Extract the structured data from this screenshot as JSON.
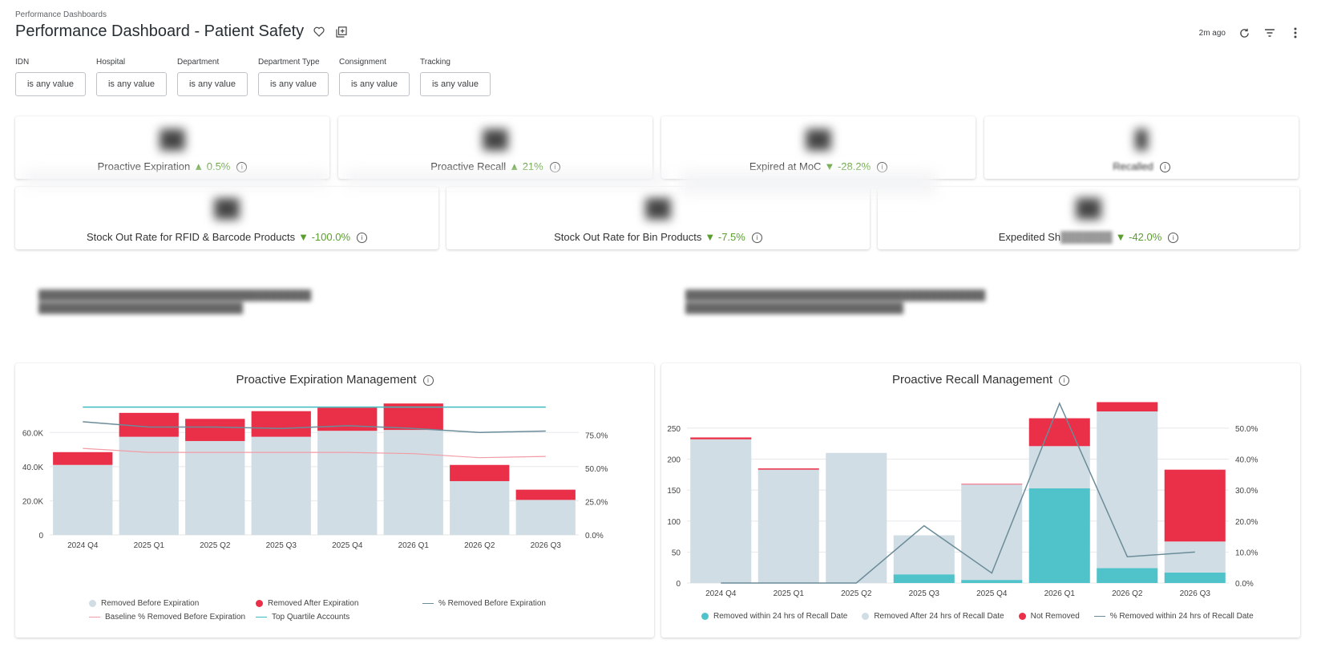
{
  "header": {
    "breadcrumb": "Performance Dashboards",
    "title": "Performance Dashboard - Patient Safety",
    "updated": "2m ago"
  },
  "filters": [
    {
      "label": "IDN",
      "value": "is any value"
    },
    {
      "label": "Hospital",
      "value": "is any value"
    },
    {
      "label": "Department",
      "value": "is any value"
    },
    {
      "label": "Department Type",
      "value": "is any value"
    },
    {
      "label": "Consignment",
      "value": "is any value"
    },
    {
      "label": "Tracking",
      "value": "is any value"
    }
  ],
  "kpis_row1": [
    {
      "label": "Proactive Expiration",
      "arrow": "▲",
      "change": "0.5%"
    },
    {
      "label": "Proactive Recall",
      "arrow": "▲",
      "change": "21%"
    },
    {
      "label": "Expired at MoC",
      "arrow": "▼",
      "change": "-28.2%"
    },
    {
      "label": "Recalled",
      "arrow": "",
      "change": ""
    }
  ],
  "kpis_row2": [
    {
      "label": "Stock Out Rate for RFID & Barcode Products",
      "arrow": "▼",
      "change": "-100.0%"
    },
    {
      "label": "Stock Out Rate for Bin Products",
      "arrow": "▼",
      "change": "-7.5%"
    },
    {
      "label": "Expedited Sh",
      "arrow": "▼",
      "change": "-42.0%"
    }
  ],
  "charts": {
    "expiration_title": "Proactive Expiration Management",
    "recall_title": "Proactive Recall Management",
    "expiration_legend": [
      "Removed Before Expiration",
      "Removed After Expiration",
      "% Removed Before Expiration",
      "Baseline % Removed Before Expiration",
      "Top Quartile Accounts"
    ],
    "recall_legend": [
      "Removed within 24 hrs of Recall Date",
      "Removed After 24 hrs of Recall Date",
      "Not Removed",
      "% Removed within 24 hrs of Recall Date"
    ]
  },
  "colors": {
    "before": "#d0dde4",
    "after": "#ea2f48",
    "teal": "#4fc3c9",
    "line": "#6b8c99",
    "baseline": "#f29ca5",
    "quartile": "#3dbcc0"
  },
  "chart_data": [
    {
      "type": "bar",
      "title": "Proactive Expiration Management",
      "categories": [
        "2024 Q4",
        "2025 Q1",
        "2025 Q2",
        "2025 Q3",
        "2025 Q4",
        "2026 Q1",
        "2026 Q2",
        "2026 Q3"
      ],
      "series": [
        {
          "name": "Removed Before Expiration",
          "values": [
            41000,
            57500,
            55000,
            57500,
            61000,
            61500,
            31500,
            20500
          ]
        },
        {
          "name": "Removed After Expiration",
          "values": [
            7500,
            14000,
            13000,
            15000,
            13500,
            15500,
            9500,
            6000
          ]
        },
        {
          "name": "% Removed Before Expiration",
          "values": [
            85,
            81,
            81,
            80,
            82,
            80,
            77,
            78
          ],
          "axis": "right"
        },
        {
          "name": "Baseline % Removed Before Expiration",
          "values": [
            65,
            62,
            62,
            62,
            62,
            61,
            58,
            59
          ],
          "axis": "right"
        },
        {
          "name": "Top Quartile Accounts",
          "values": [
            96,
            96,
            96,
            96,
            96,
            96,
            96,
            96
          ],
          "axis": "right"
        }
      ],
      "yticks": [
        "0",
        "20.0K",
        "40.0K",
        "60.0K"
      ],
      "y2ticks": [
        "0.0%",
        "25.0%",
        "50.0%",
        "75.0%"
      ],
      "ylim": [
        0,
        78000
      ],
      "y2lim": [
        0,
        100
      ]
    },
    {
      "type": "bar",
      "title": "Proactive Recall Management",
      "categories": [
        "2024 Q4",
        "2025 Q1",
        "2025 Q2",
        "2025 Q3",
        "2025 Q4",
        "2026 Q1",
        "2026 Q2",
        "2026 Q3"
      ],
      "series": [
        {
          "name": "Removed within 24 hrs of Recall Date",
          "values": [
            0,
            0,
            0,
            14,
            5,
            153,
            24,
            17
          ]
        },
        {
          "name": "Removed After 24 hrs of Recall Date",
          "values": [
            232,
            183,
            210,
            63,
            154,
            68,
            253,
            50
          ]
        },
        {
          "name": "Not Removed",
          "values": [
            3,
            2,
            0,
            0,
            1,
            45,
            15,
            116
          ]
        },
        {
          "name": "% Removed within 24 hrs of Recall Date",
          "values": [
            0,
            0,
            0,
            18.5,
            3.2,
            58,
            8.5,
            10
          ],
          "axis": "right"
        }
      ],
      "yticks": [
        "0",
        "50",
        "100",
        "150",
        "200",
        "250"
      ],
      "y2ticks": [
        "0.0%",
        "10.0%",
        "20.0%",
        "30.0%",
        "40.0%",
        "50.0%"
      ],
      "ylim": [
        0,
        290
      ],
      "y2lim": [
        0,
        58
      ]
    }
  ]
}
